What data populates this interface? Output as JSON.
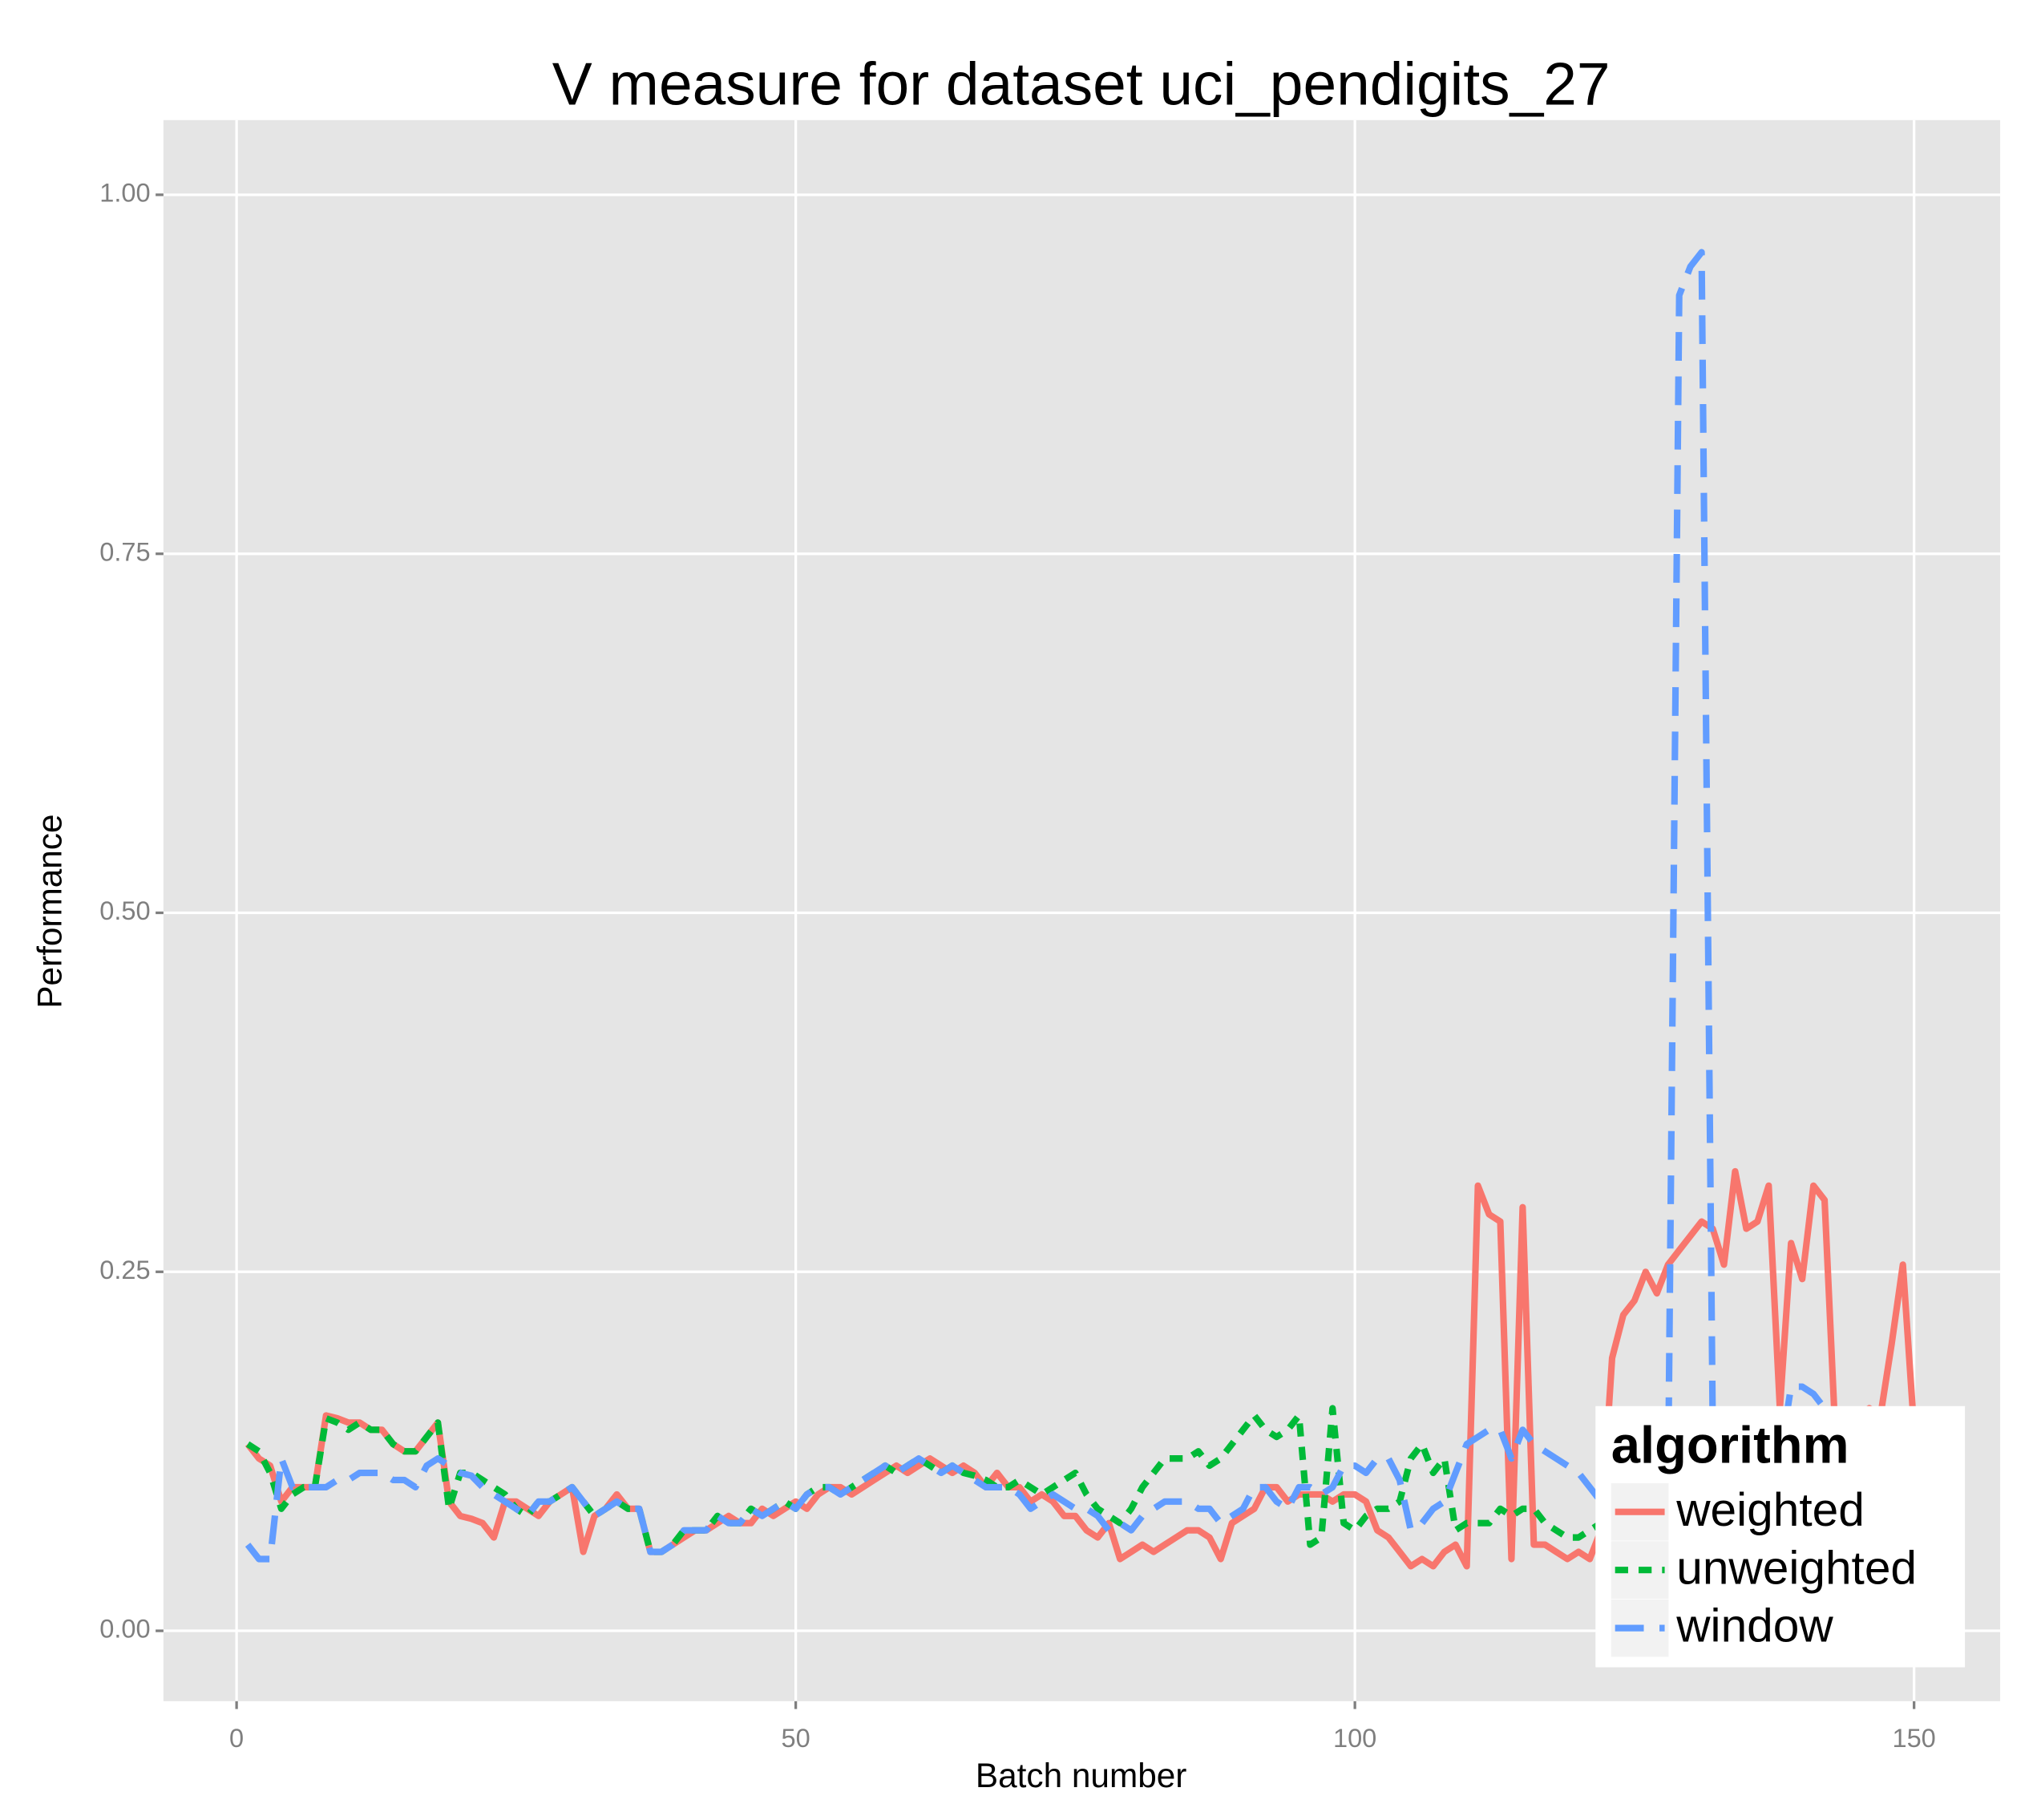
{
  "chart_data": {
    "type": "line",
    "title": "V measure for dataset uci_pendigits_27",
    "x_label": "Batch number",
    "y_label": "Performance",
    "legend_title": "algorithm",
    "legend_position": "bottom-right",
    "grid": true,
    "xlim": [
      -6.54,
      157.7
    ],
    "ylim": [
      -0.049,
      1.052
    ],
    "xticks": [
      0,
      50,
      100,
      150
    ],
    "yticks": [
      {
        "value": 0,
        "label": "0.00"
      },
      {
        "value": 0.25,
        "label": "0.25"
      },
      {
        "value": 0.5,
        "label": "0.50"
      },
      {
        "value": 0.75,
        "label": "0.75"
      },
      {
        "value": 1,
        "label": "1.00"
      }
    ],
    "x": [
      1,
      2,
      3,
      4,
      5,
      6,
      7,
      8,
      9,
      10,
      11,
      12,
      13,
      14,
      15,
      16,
      17,
      18,
      19,
      20,
      21,
      22,
      23,
      24,
      25,
      26,
      27,
      28,
      29,
      30,
      31,
      32,
      33,
      34,
      35,
      36,
      37,
      38,
      39,
      40,
      41,
      42,
      43,
      44,
      45,
      46,
      47,
      48,
      49,
      50,
      51,
      52,
      53,
      54,
      55,
      56,
      57,
      58,
      59,
      60,
      61,
      62,
      63,
      64,
      65,
      66,
      67,
      68,
      69,
      70,
      71,
      72,
      73,
      74,
      75,
      76,
      77,
      78,
      79,
      80,
      81,
      82,
      83,
      84,
      85,
      86,
      87,
      88,
      89,
      90,
      91,
      92,
      93,
      94,
      95,
      96,
      97,
      98,
      99,
      100,
      101,
      102,
      103,
      104,
      105,
      106,
      107,
      108,
      109,
      110,
      111,
      112,
      113,
      114,
      115,
      116,
      117,
      118,
      119,
      120,
      121,
      122,
      123,
      124,
      125,
      126,
      127,
      128,
      129,
      130,
      131,
      132,
      133,
      134,
      135,
      136,
      137,
      138,
      139,
      140,
      141,
      142,
      143,
      144,
      145,
      146,
      147,
      148,
      149,
      150
    ],
    "series": [
      {
        "name": "weighted",
        "color": "#f8766d",
        "dash": "solid",
        "values": [
          0.13,
          0.12,
          0.115,
          0.09,
          0.1,
          0.1,
          0.1,
          0.15,
          0.148,
          0.145,
          0.145,
          0.14,
          0.14,
          0.13,
          0.125,
          0.125,
          0.135,
          0.145,
          0.09,
          0.08,
          0.078,
          0.075,
          0.065,
          0.09,
          0.09,
          0.085,
          0.08,
          0.09,
          0.095,
          0.1,
          0.055,
          0.08,
          0.085,
          0.095,
          0.085,
          0.085,
          0.055,
          0.055,
          0.06,
          0.065,
          0.07,
          0.07,
          0.075,
          0.08,
          0.075,
          0.075,
          0.085,
          0.08,
          0.085,
          0.09,
          0.085,
          0.095,
          0.1,
          0.1,
          0.095,
          0.1,
          0.105,
          0.11,
          0.115,
          0.11,
          0.115,
          0.12,
          0.115,
          0.11,
          0.115,
          0.11,
          0.1,
          0.11,
          0.1,
          0.1,
          0.09,
          0.095,
          0.09,
          0.08,
          0.08,
          0.07,
          0.065,
          0.075,
          0.05,
          0.055,
          0.06,
          0.055,
          0.06,
          0.065,
          0.07,
          0.07,
          0.065,
          0.05,
          0.075,
          0.08,
          0.085,
          0.1,
          0.1,
          0.09,
          0.095,
          0.095,
          0.095,
          0.09,
          0.095,
          0.095,
          0.09,
          0.07,
          0.065,
          0.055,
          0.045,
          0.05,
          0.045,
          0.055,
          0.06,
          0.045,
          0.31,
          0.29,
          0.285,
          0.05,
          0.295,
          0.06,
          0.06,
          0.055,
          0.05,
          0.055,
          0.05,
          0.07,
          0.19,
          0.22,
          0.23,
          0.25,
          0.235,
          0.255,
          0.265,
          0.275,
          0.285,
          0.28,
          0.255,
          0.32,
          0.28,
          0.285,
          0.31,
          0.155,
          0.27,
          0.245,
          0.31,
          0.3,
          0.13,
          0.14,
          0.15,
          0.155,
          0.15,
          0.2,
          0.255,
          0.14
        ]
      },
      {
        "name": "unweighted",
        "color": "#00ba38",
        "dash": "short",
        "values": [
          0.13,
          0.125,
          0.11,
          0.085,
          0.095,
          0.1,
          0.1,
          0.148,
          0.145,
          0.14,
          0.145,
          0.14,
          0.14,
          0.13,
          0.125,
          0.125,
          0.135,
          0.145,
          0.085,
          0.11,
          0.11,
          0.105,
          0.1,
          0.095,
          0.085,
          0.08,
          0.09,
          0.09,
          0.095,
          0.1,
          0.09,
          0.08,
          0.085,
          0.09,
          0.085,
          0.085,
          0.055,
          0.055,
          0.06,
          0.07,
          0.07,
          0.07,
          0.08,
          0.075,
          0.075,
          0.085,
          0.08,
          0.085,
          0.09,
          0.085,
          0.095,
          0.1,
          0.1,
          0.095,
          0.1,
          0.105,
          0.11,
          0.115,
          0.11,
          0.115,
          0.12,
          0.115,
          0.11,
          0.115,
          0.11,
          0.108,
          0.105,
          0.1,
          0.1,
          0.105,
          0.1,
          0.095,
          0.1,
          0.105,
          0.11,
          0.095,
          0.085,
          0.08,
          0.075,
          0.085,
          0.1,
          0.11,
          0.12,
          0.12,
          0.12,
          0.125,
          0.115,
          0.12,
          0.13,
          0.14,
          0.15,
          0.14,
          0.135,
          0.14,
          0.15,
          0.06,
          0.065,
          0.155,
          0.075,
          0.07,
          0.08,
          0.085,
          0.085,
          0.09,
          0.12,
          0.13,
          0.11,
          0.12,
          0.07,
          0.075,
          0.075,
          0.075,
          0.085,
          0.08,
          0.085,
          0.085,
          0.075,
          0.07,
          0.065,
          0.065,
          0.07,
          0.075,
          0.08,
          0.08,
          0.085,
          0.09,
          0.085,
          0.09,
          0.095,
          0.1,
          0.095,
          0.1,
          0.1,
          0.095,
          0.1,
          0.105,
          0.1,
          0.1,
          0.105,
          0.11,
          0.105,
          0.1,
          0.1,
          0.095,
          0.1,
          0.105,
          0.1,
          0.095,
          0.1,
          0.1
        ]
      },
      {
        "name": "window",
        "color": "#619cff",
        "dash": "long",
        "values": [
          0.06,
          0.05,
          0.05,
          0.12,
          0.1,
          0.1,
          0.1,
          0.1,
          0.105,
          0.105,
          0.11,
          0.11,
          0.11,
          0.105,
          0.105,
          0.1,
          0.115,
          0.12,
          0.115,
          0.11,
          0.108,
          0.1,
          0.095,
          0.09,
          0.085,
          0.08,
          0.09,
          0.09,
          0.095,
          0.1,
          0.09,
          0.08,
          0.085,
          0.09,
          0.085,
          0.085,
          0.055,
          0.055,
          0.06,
          0.07,
          0.07,
          0.07,
          0.08,
          0.075,
          0.075,
          0.085,
          0.08,
          0.085,
          0.09,
          0.085,
          0.095,
          0.1,
          0.1,
          0.095,
          0.1,
          0.105,
          0.11,
          0.115,
          0.11,
          0.115,
          0.12,
          0.115,
          0.11,
          0.115,
          0.11,
          0.105,
          0.1,
          0.1,
          0.1,
          0.095,
          0.085,
          0.09,
          0.095,
          0.09,
          0.085,
          0.085,
          0.08,
          0.07,
          0.075,
          0.07,
          0.08,
          0.085,
          0.09,
          0.09,
          0.09,
          0.085,
          0.085,
          0.075,
          0.08,
          0.085,
          0.1,
          0.1,
          0.09,
          0.085,
          0.1,
          0.1,
          0.095,
          0.1,
          0.115,
          0.115,
          0.11,
          0.12,
          0.12,
          0.105,
          0.07,
          0.075,
          0.085,
          0.09,
          0.11,
          0.13,
          0.135,
          0.14,
          0.14,
          0.12,
          0.14,
          0.13,
          0.125,
          0.12,
          0.115,
          0.11,
          0.1,
          0.09,
          0.085,
          0.08,
          0.08,
          0.085,
          0.09,
          0.1,
          0.93,
          0.95,
          0.96,
          0.14,
          0.14,
          0.13,
          0.12,
          0.115,
          0.11,
          0.12,
          0.17,
          0.17,
          0.165,
          0.155,
          0.15,
          0.14,
          0.13,
          0.125,
          0.12,
          0.12,
          0.11,
          0.11
        ]
      }
    ]
  }
}
